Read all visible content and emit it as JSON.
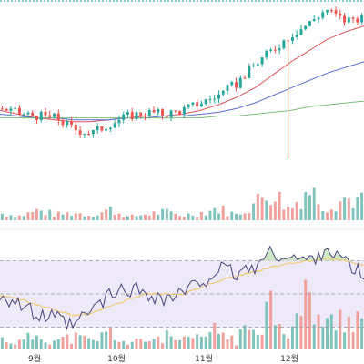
{
  "colors": {
    "up": "#26a69a",
    "down": "#ef5350",
    "volume_up": "#7fc4bc",
    "volume_down": "#f2a09c",
    "ma_red": "#e0525c",
    "ma_blue": "#5b6fd6",
    "ma_green": "#7cbf7a",
    "rsi_line": "#4a4580",
    "rsi_signal": "#f0c75e",
    "rsi_band": "#ede9f8",
    "overbought_fill": "#cfe8c5",
    "oversold_fill": "#f4c2c2",
    "panel_border": "#26a69a",
    "level_line": "#9b9b9b"
  },
  "chart_data": [
    {
      "type": "candlestick",
      "panel": "price",
      "grid": false,
      "x_ticks": [
        "9월",
        "10월",
        "11월",
        "12월"
      ],
      "ylim": [
        0,
        100
      ],
      "ohlc_approx": [
        {
          "t": 0,
          "o": 47,
          "h": 50,
          "l": 44,
          "c": 45
        },
        {
          "t": 5,
          "o": 45,
          "h": 47,
          "l": 40,
          "c": 42
        },
        {
          "t": 10,
          "o": 40,
          "h": 42,
          "l": 36,
          "c": 41
        },
        {
          "t": 15,
          "o": 39,
          "h": 42,
          "l": 36,
          "c": 40
        },
        {
          "t": 20,
          "o": 36,
          "h": 38,
          "l": 30,
          "c": 34
        },
        {
          "t": 25,
          "o": 34,
          "h": 37,
          "l": 30,
          "c": 32
        },
        {
          "t": 30,
          "o": 34,
          "h": 38,
          "l": 32,
          "c": 37
        },
        {
          "t": 35,
          "o": 38,
          "h": 42,
          "l": 37,
          "c": 41
        },
        {
          "t": 40,
          "o": 42,
          "h": 45,
          "l": 40,
          "c": 43
        },
        {
          "t": 45,
          "o": 40,
          "h": 44,
          "l": 38,
          "c": 42
        },
        {
          "t": 50,
          "o": 41,
          "h": 46,
          "l": 40,
          "c": 44
        },
        {
          "t": 55,
          "o": 46,
          "h": 50,
          "l": 45,
          "c": 48
        },
        {
          "t": 60,
          "o": 50,
          "h": 54,
          "l": 49,
          "c": 52
        },
        {
          "t": 65,
          "o": 54,
          "h": 60,
          "l": 53,
          "c": 58
        },
        {
          "t": 70,
          "o": 62,
          "h": 70,
          "l": 62,
          "c": 68
        },
        {
          "t": 75,
          "o": 68,
          "h": 80,
          "l": 30,
          "c": 76
        },
        {
          "t": 80,
          "o": 78,
          "h": 86,
          "l": 76,
          "c": 84
        },
        {
          "t": 85,
          "o": 84,
          "h": 92,
          "l": 70,
          "c": 90
        },
        {
          "t": 90,
          "o": 90,
          "h": 100,
          "l": 88,
          "c": 98
        },
        {
          "t": 95,
          "o": 96,
          "h": 98,
          "l": 90,
          "c": 92
        },
        {
          "t": 100,
          "o": 92,
          "h": 96,
          "l": 90,
          "c": 94
        }
      ],
      "series": [
        {
          "values": [
            44,
            42,
            40,
            39,
            38,
            38,
            39,
            40,
            41,
            41,
            42,
            44,
            47,
            51,
            56,
            63,
            70,
            76,
            82,
            86,
            89
          ]
        },
        {
          "values": [
            42,
            41,
            40,
            40,
            39,
            39,
            39,
            40,
            40,
            41,
            41,
            42,
            43,
            45,
            48,
            52,
            56,
            60,
            64,
            67,
            70
          ]
        },
        {
          "values": [
            40,
            40,
            40,
            40,
            40,
            40,
            40,
            40,
            40,
            40,
            40,
            40,
            41,
            41,
            42,
            43,
            44,
            46,
            47,
            48,
            49
          ]
        }
      ]
    },
    {
      "type": "bar",
      "panel": "volume",
      "values": [
        12,
        8,
        18,
        10,
        14,
        9,
        20,
        6,
        11,
        15,
        9,
        13,
        22,
        10,
        30,
        55,
        18,
        60,
        25,
        40,
        35
      ],
      "ylim": [
        0,
        100
      ]
    },
    {
      "type": "line",
      "panel": "rsi",
      "reference_levels": [
        80,
        50,
        20
      ],
      "ylim": [
        0,
        100
      ],
      "series": [
        {
          "values": [
            50,
            42,
            30,
            28,
            20,
            35,
            48,
            55,
            52,
            45,
            50,
            60,
            72,
            68,
            75,
            88,
            82,
            80,
            92,
            78,
            65
          ]
        },
        {
          "values": [
            48,
            46,
            40,
            36,
            30,
            32,
            38,
            45,
            50,
            50,
            50,
            55,
            62,
            66,
            70,
            75,
            78,
            80,
            82,
            80,
            75
          ]
        }
      ]
    }
  ]
}
